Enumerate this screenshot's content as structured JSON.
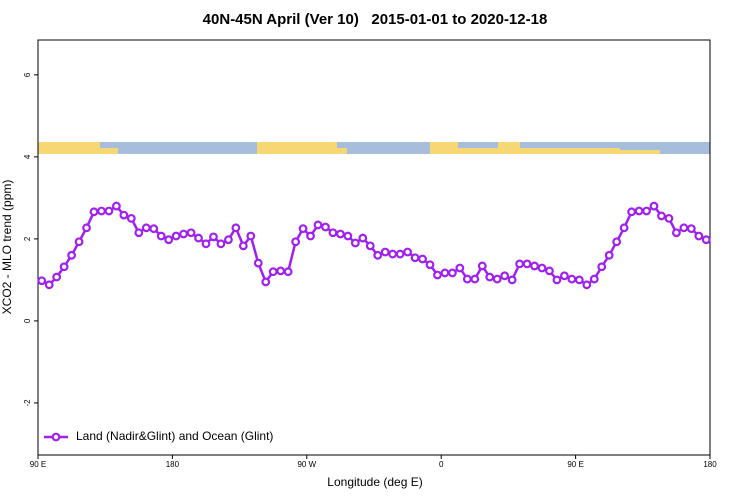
{
  "chart_data": {
    "type": "line",
    "title": "40N-45N April (Ver 10)   2015-01-01 to 2020-12-18",
    "x_label": "Longitude (deg E)",
    "y_label": "XCO2 - MLO trend (ppm)",
    "x": [
      92.5,
      97.5,
      102.5,
      107.5,
      112.5,
      117.5,
      122.5,
      127.5,
      132.5,
      137.5,
      142.5,
      147.5,
      152.5,
      157.5,
      162.5,
      167.5,
      172.5,
      177.5,
      182.5,
      187.5,
      192.5,
      197.5,
      202.5,
      207.5,
      212.5,
      217.5,
      222.5,
      227.5,
      232.5,
      237.5,
      242.5,
      247.5,
      252.5,
      257.5,
      262.5,
      267.5,
      272.5,
      277.5,
      282.5,
      287.5,
      292.5,
      297.5,
      302.5,
      307.5,
      312.5,
      317.5,
      322.5,
      327.5,
      332.5,
      337.5,
      342.5,
      347.5,
      352.5,
      357.5,
      362.5,
      367.5,
      372.5,
      377.5,
      382.5,
      387.5,
      392.5,
      397.5,
      402.5,
      407.5,
      412.5,
      417.5,
      422.5,
      427.5,
      432.5,
      437.5,
      442.5,
      447.5,
      452.5,
      457.5,
      462.5,
      467.5,
      472.5,
      477.5,
      482.5,
      487.5,
      492.5,
      497.5,
      502.5,
      507.5,
      512.5,
      517.5,
      522.5,
      527.5,
      532.5,
      537.5
    ],
    "series": [
      {
        "name": "Land (Nadir&Glint) and Ocean (Glint)",
        "color": "#a020f0",
        "values": [
          0.98,
          0.88,
          1.07,
          1.32,
          1.6,
          1.93,
          2.27,
          2.66,
          2.68,
          2.68,
          2.8,
          2.58,
          2.5,
          2.15,
          2.27,
          2.25,
          2.07,
          1.98,
          2.07,
          2.12,
          2.15,
          2.02,
          1.88,
          2.05,
          1.88,
          1.98,
          2.27,
          1.83,
          2.07,
          1.41,
          0.95,
          1.2,
          1.22,
          1.2,
          1.93,
          2.25,
          2.07,
          2.34,
          2.29,
          2.15,
          2.12,
          2.07,
          1.9,
          2.02,
          1.83,
          1.6,
          1.68,
          1.63,
          1.63,
          1.68,
          1.54,
          1.51,
          1.37,
          1.12,
          1.17,
          1.17,
          1.29,
          1.02,
          1.02,
          1.34,
          1.07,
          1.02,
          1.1,
          1.0,
          1.39,
          1.39,
          1.34,
          1.29,
          1.22,
          1.0,
          1.1,
          1.02,
          1.0,
          0.88,
          1.02,
          1.32,
          1.6,
          1.93,
          2.27,
          2.66,
          2.68,
          2.68,
          2.8,
          2.56,
          2.5,
          2.15,
          2.27,
          2.25,
          2.07,
          1.98
        ]
      }
    ],
    "xlim": [
      90,
      540
    ],
    "xticks": [
      {
        "value": 90,
        "label": "90 E"
      },
      180,
      {
        "value": 270,
        "label": "90 W"
      },
      {
        "value": 360,
        "label": "0"
      },
      {
        "value": 450,
        "label": "90 E"
      },
      {
        "value": 540,
        "label": "180"
      }
    ],
    "ylim": [
      -3.27,
      6.85
    ],
    "yticks": [
      -2,
      0,
      2,
      4,
      6
    ],
    "grid": false,
    "legend": "bottom-left"
  }
}
